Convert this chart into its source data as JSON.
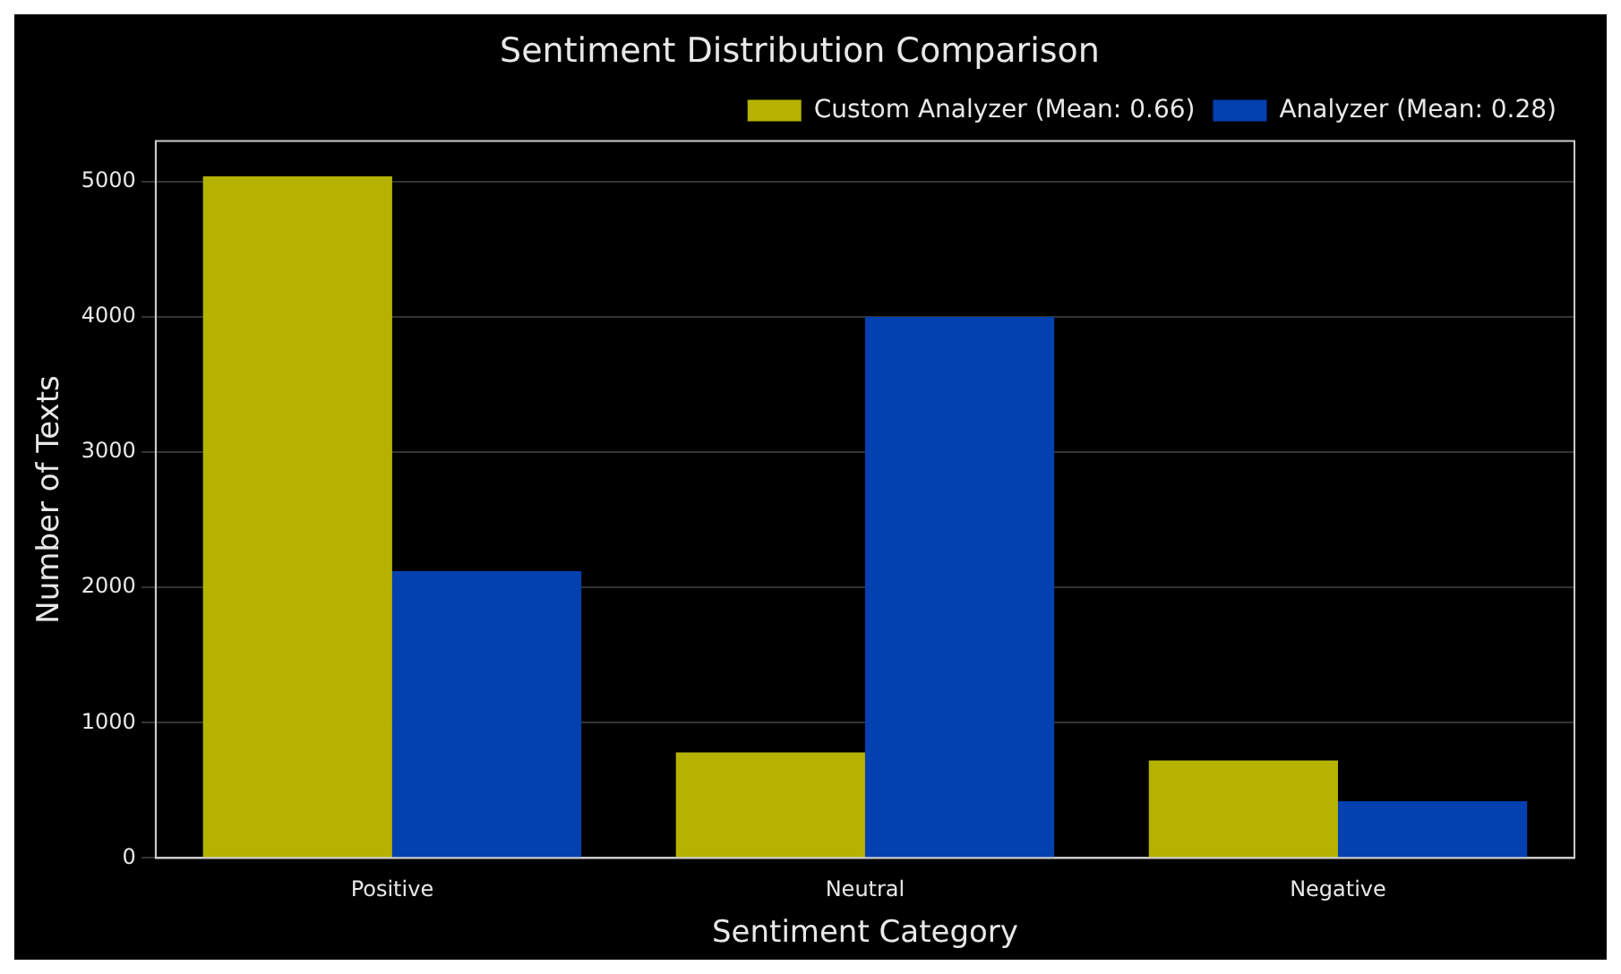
{
  "chart_data": {
    "type": "bar",
    "title": "Sentiment Distribution Comparison",
    "xlabel": "Sentiment Category",
    "ylabel": "Number of Texts",
    "categories": [
      "Positive",
      "Neutral",
      "Negative"
    ],
    "series": [
      {
        "name": "Custom Analyzer (Mean: 0.66)",
        "color": "#b5b300",
        "values": [
          5040,
          780,
          720
        ]
      },
      {
        "name": "Analyzer (Mean: 0.28)",
        "color": "#0340b0",
        "values": [
          2120,
          4000,
          420
        ]
      }
    ],
    "ylim": [
      0,
      5300
    ],
    "yticks": [
      0,
      1000,
      2000,
      3000,
      4000,
      5000
    ],
    "grid": "y",
    "legend": "top right"
  }
}
